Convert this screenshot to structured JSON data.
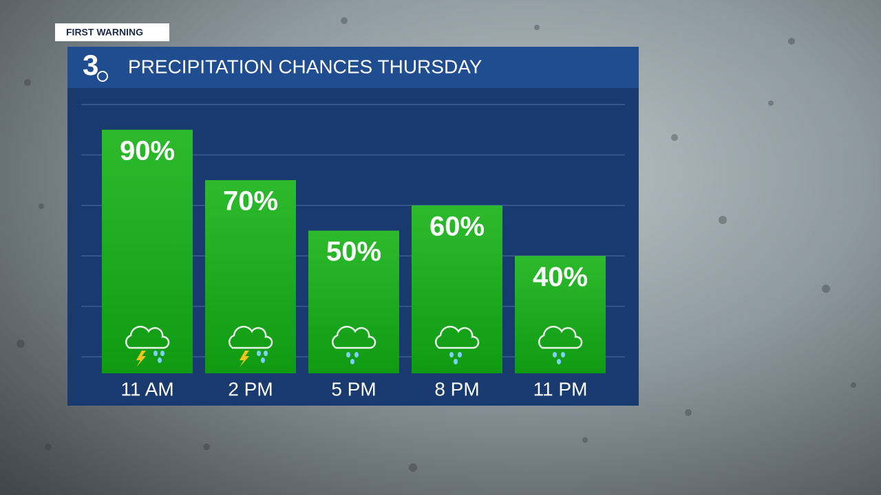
{
  "badge": "FIRST WARNING",
  "logo": "3",
  "chart_data": {
    "type": "bar",
    "title": "PRECIPITATION CHANCES THURSDAY",
    "categories": [
      "11 AM",
      "2 PM",
      "5 PM",
      "8 PM",
      "11 PM"
    ],
    "values": [
      90,
      70,
      50,
      60,
      40
    ],
    "value_labels": [
      "90%",
      "70%",
      "50%",
      "60%",
      "40%"
    ],
    "color": "#1aa81a",
    "ylim": [
      0,
      100
    ],
    "yticks": [
      0,
      20,
      40,
      60,
      80,
      100
    ],
    "grid": true
  }
}
